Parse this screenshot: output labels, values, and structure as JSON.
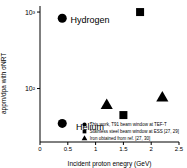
{
  "chart_data": {
    "type": "scatter",
    "x_label": "Incident proton enegry (GeV)",
    "y_label": "appm/dpa with σNRT",
    "log": "y",
    "xlim": [
      0,
      2.5
    ],
    "xticks": [
      0,
      0.5,
      1,
      1.5,
      2,
      2.5
    ],
    "ylim": [
      20,
      1200
    ],
    "yticks": [
      {
        "value": 100,
        "label": "10²"
      },
      {
        "value": 1000,
        "label": "10³"
      }
    ],
    "legend": "lower right",
    "series": [
      {
        "name": "This work, T91 beam window at TEF-T",
        "color": "#000000",
        "marker": "circle",
        "x": [
          0.4,
          0.4
        ],
        "values": [
          830,
          35
        ]
      },
      {
        "name": "Stainless steel beam window at ESS [27, 29]",
        "color": "#000000",
        "marker": "square",
        "x": [
          1.5,
          1.8
        ],
        "values": [
          45,
          1000
        ]
      },
      {
        "name": "Iron obtained from ref. [27, 30]",
        "color": "#000000",
        "marker": "triangle",
        "x": [
          1.2,
          2.2
        ],
        "values": [
          60,
          75
        ]
      }
    ],
    "annotations": [
      {
        "text": "Hydrogen",
        "x": 0.9,
        "y": 800
      },
      {
        "text": "Helium",
        "x": 0.9,
        "y": 32
      }
    ]
  }
}
